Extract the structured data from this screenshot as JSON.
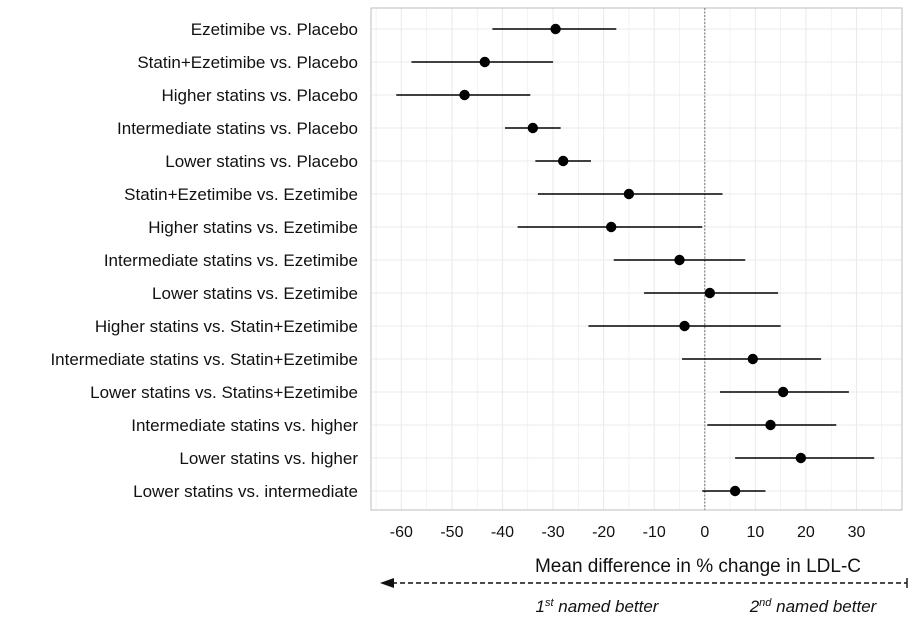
{
  "chart_data": {
    "type": "forest",
    "categories": [
      "Ezetimibe vs. Placebo",
      "Statin+Ezetimibe  vs. Placebo",
      "Higher statins vs. Placebo",
      "Intermediate statins vs. Placebo",
      "Lower statins vs. Placebo",
      "Statin+Ezetimibe  vs. Ezetimibe",
      "Higher statins vs. Ezetimibe",
      "Intermediate statins vs. Ezetimibe",
      "Lower statins vs. Ezetimibe",
      "Higher statins vs. Statin+Ezetimibe",
      "Intermediate statins vs. Statin+Ezetimibe",
      "Lower statins vs. Statins+Ezetimibe",
      "Intermediate statins vs. higher",
      "Lower statins vs. higher",
      "Lower statins vs. intermediate"
    ],
    "estimates": [
      -29.5,
      -43.5,
      -47.5,
      -34.0,
      -28.0,
      -15.0,
      -18.5,
      -5.0,
      1.0,
      -4.0,
      9.5,
      15.5,
      13.0,
      19.0,
      6.0
    ],
    "ci_lower": [
      -42.0,
      -58.0,
      -61.0,
      -39.5,
      -33.5,
      -33.0,
      -37.0,
      -18.0,
      -12.0,
      -23.0,
      -4.5,
      3.0,
      0.5,
      6.0,
      -0.5
    ],
    "ci_upper": [
      -17.5,
      -30.0,
      -34.5,
      -28.5,
      -22.5,
      3.5,
      -0.5,
      8.0,
      14.5,
      15.0,
      23.0,
      28.5,
      26.0,
      33.5,
      12.0
    ],
    "xlabel": "Mean difference in % change in LDL-C",
    "xticks": [
      -60,
      -50,
      -40,
      -30,
      -20,
      -10,
      0,
      10,
      20,
      30
    ],
    "xlim": [
      -66,
      39
    ],
    "reference_line": 0,
    "grid": true,
    "annotations": {
      "left_better": {
        "sup": "st",
        "prefix": "1",
        "text": " named better"
      },
      "right_better": {
        "sup": "nd",
        "prefix": "2",
        "text": " named better"
      }
    },
    "colors": {
      "points": "#000000",
      "grid": "#ebebeb",
      "panel_border": "#bdbdbd",
      "reference": "#888888"
    }
  }
}
